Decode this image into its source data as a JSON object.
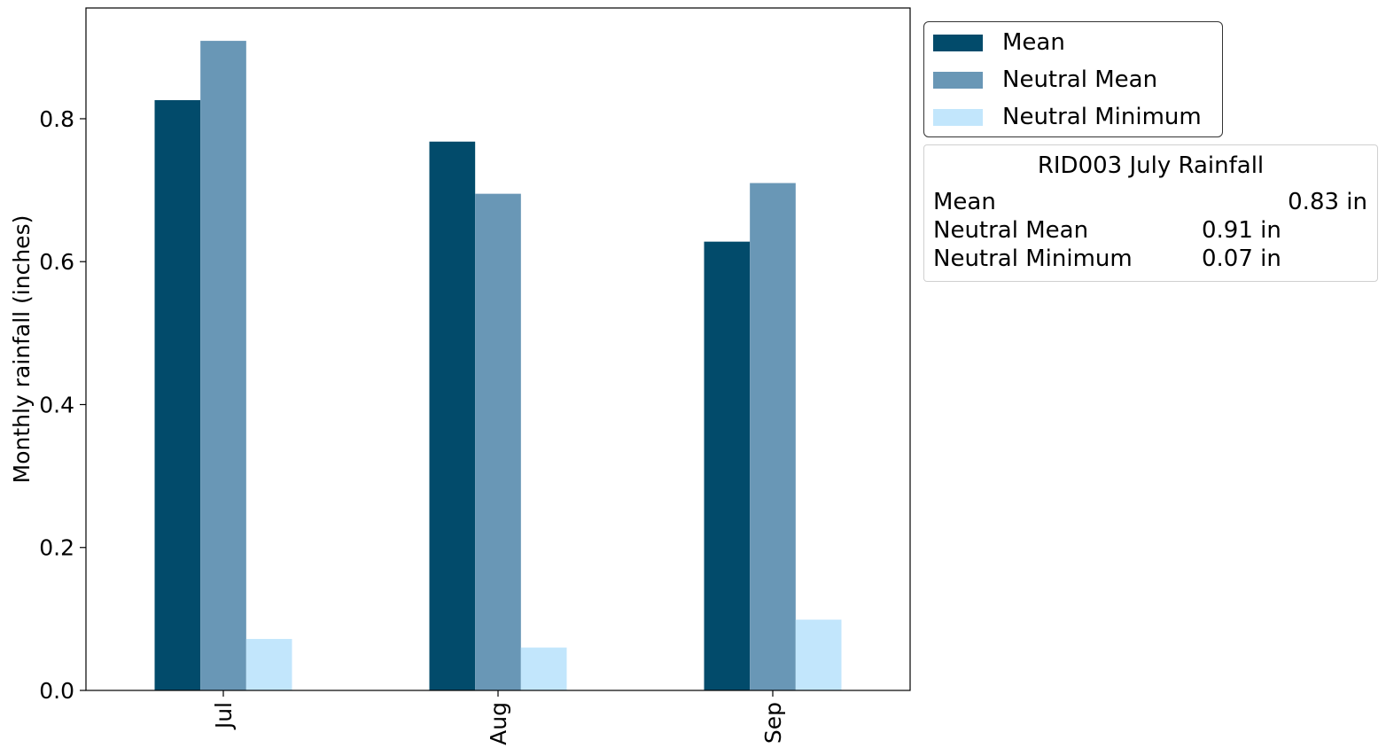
{
  "chart_data": {
    "type": "bar",
    "categories": [
      "Jul",
      "Aug",
      "Sep"
    ],
    "series": [
      {
        "name": "Mean",
        "values": [
          0.826,
          0.768,
          0.628
        ],
        "color": "#024b6b"
      },
      {
        "name": "Neutral Mean",
        "values": [
          0.909,
          0.695,
          0.71
        ],
        "color": "#6997b6"
      },
      {
        "name": "Neutral Minimum",
        "values": [
          0.072,
          0.06,
          0.099
        ],
        "color": "#c2e6fc"
      }
    ],
    "ylabel": "Monthly rainfall (inches)",
    "xlabel": "",
    "ylim": [
      0,
      0.955
    ],
    "yticks": [
      "0.0",
      "0.2",
      "0.4",
      "0.6",
      "0.8"
    ],
    "grid": false,
    "legend_position": "outside-top-right"
  },
  "stats_box": {
    "title": "RID003 July Rainfall",
    "rows": [
      {
        "label": "Mean",
        "value": "0.83 in"
      },
      {
        "label": "Neutral Mean",
        "value": "0.91 in"
      },
      {
        "label": "Neutral Minimum",
        "value": "0.07 in"
      }
    ]
  }
}
